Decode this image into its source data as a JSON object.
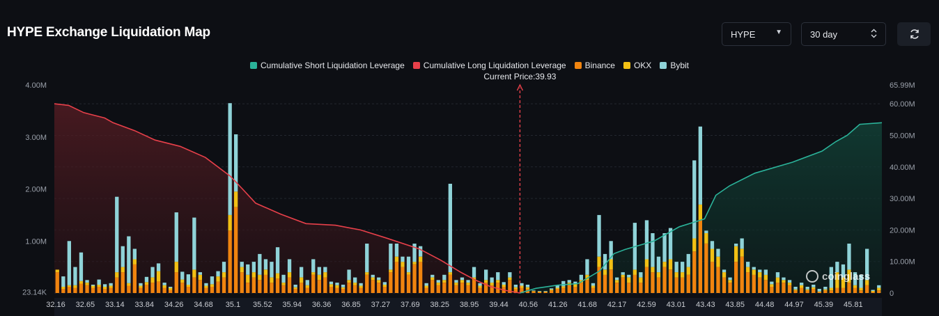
{
  "header": {
    "title": "HYPE Exchange Liquidation Map",
    "symbol_select": "HYPE",
    "period_select": "30 day"
  },
  "colors": {
    "short": "#2bb39a",
    "long": "#e8404a",
    "binance": "#f0840f",
    "okx": "#f2c014",
    "bybit": "#8fd3d8",
    "background": "#0d0f14"
  },
  "icons": {
    "symbol_select": "chevron-down-icon",
    "period_select": "up-down-chevron-icon",
    "refresh": "refresh-icon",
    "watermark": "coinglass-logo"
  },
  "chart_data": {
    "type": "bar",
    "current_price_label": "Current Price:39.93",
    "current_price": 39.93,
    "watermark": "coinglass",
    "legend": [
      {
        "name": "Cumulative Short Liquidation Leverage",
        "color": "#2bb39a"
      },
      {
        "name": "Cumulative Long Liquidation Leverage",
        "color": "#e8404a"
      },
      {
        "name": "Binance",
        "color": "#f0840f"
      },
      {
        "name": "OKX",
        "color": "#f2c014"
      },
      {
        "name": "Bybit",
        "color": "#8fd3d8"
      }
    ],
    "y_left_ticks": [
      "23.14K",
      "1.00M",
      "2.00M",
      "3.00M",
      "4.00M"
    ],
    "y_left_ticks_values": [
      23140,
      1000000,
      2000000,
      3000000,
      4000000
    ],
    "y_left_range": [
      0,
      4000000
    ],
    "y_right_ticks": [
      "0",
      "10.00M",
      "20.00M",
      "30.00M",
      "40.00M",
      "50.00M",
      "60.00M",
      "65.99M"
    ],
    "y_right_ticks_values": [
      0,
      10000000,
      20000000,
      30000000,
      40000000,
      50000000,
      60000000,
      65990000
    ],
    "y_right_range": [
      0,
      65990000
    ],
    "x_ticks": [
      "32.16",
      "32.65",
      "33.14",
      "33.84",
      "34.26",
      "34.68",
      "35.1",
      "35.52",
      "35.94",
      "36.36",
      "36.85",
      "37.27",
      "37.69",
      "38.25",
      "38.95",
      "39.44",
      "40.56",
      "41.26",
      "41.68",
      "42.17",
      "42.59",
      "43.01",
      "43.43",
      "43.85",
      "44.48",
      "44.97",
      "45.39",
      "45.81"
    ],
    "x_range": [
      32.16,
      45.97
    ],
    "bars_binance": [
      0.4,
      0.08,
      0.12,
      0.1,
      0.18,
      0.15,
      0.1,
      0.12,
      0.08,
      0.1,
      0.3,
      0.4,
      0.14,
      0.55,
      0.1,
      0.16,
      0.2,
      0.22,
      0.1,
      0.06,
      0.4,
      0.2,
      0.12,
      0.3,
      0.25,
      0.1,
      0.12,
      0.22,
      0.3,
      1.2,
      1.65,
      0.4,
      0.2,
      0.3,
      0.25,
      0.35,
      0.2,
      0.28,
      0.15,
      0.3,
      0.08,
      0.2,
      0.1,
      0.35,
      0.25,
      0.3,
      0.12,
      0.1,
      0.08,
      0.2,
      0.15,
      0.1,
      0.35,
      0.25,
      0.2,
      0.12,
      0.4,
      0.6,
      0.5,
      0.35,
      0.55,
      0.6,
      0.1,
      0.25,
      0.15,
      0.2,
      0.35,
      0.15,
      0.2,
      0.15,
      0.25,
      0.1,
      0.2,
      0.15,
      0.2,
      0.12,
      0.25,
      0.08,
      0.1,
      0.08,
      0.03,
      0.02,
      0.02,
      0.05,
      0.08,
      0.1,
      0.15,
      0.12,
      0.2,
      0.25,
      0.1,
      0.5,
      0.35,
      0.45,
      0.2,
      0.3,
      0.2,
      0.35,
      0.2,
      0.5,
      0.4,
      0.3,
      0.5,
      0.45,
      0.3,
      0.3,
      0.35,
      0.8,
      1.4,
      0.95,
      0.6,
      0.5,
      0.3,
      0.2,
      0.6,
      0.7,
      0.4,
      0.35,
      0.3,
      0.25,
      0.12,
      0.2,
      0.2,
      0.15,
      0.05,
      0.1,
      0.05,
      0.08,
      0.02,
      0.05,
      0.05,
      0.1,
      0.1,
      0.2,
      0.1,
      0.05,
      0.15,
      0.02,
      0.05
    ],
    "bars_okx": [
      0.05,
      0.04,
      0.03,
      0.05,
      0.05,
      0.05,
      0.04,
      0.04,
      0.04,
      0.04,
      0.1,
      0.1,
      0.05,
      0.1,
      0.04,
      0.05,
      0.1,
      0.2,
      0.05,
      0.04,
      0.2,
      0.06,
      0.04,
      0.15,
      0.1,
      0.04,
      0.05,
      0.1,
      0.1,
      0.3,
      0.3,
      0.1,
      0.15,
      0.1,
      0.1,
      0.1,
      0.1,
      0.1,
      0.05,
      0.1,
      0.03,
      0.1,
      0.05,
      0.05,
      0.1,
      0.1,
      0.05,
      0.05,
      0.03,
      0.05,
      0.05,
      0.04,
      0.05,
      0.05,
      0.05,
      0.04,
      0.05,
      0.1,
      0.1,
      0.05,
      0.05,
      0.1,
      0.04,
      0.05,
      0.05,
      0.05,
      0.05,
      0.05,
      0.05,
      0.05,
      0.05,
      0.04,
      0.05,
      0.05,
      0.05,
      0.04,
      0.05,
      0.03,
      0.04,
      0.03,
      0.01,
      0.01,
      0.01,
      0.02,
      0.02,
      0.03,
      0.05,
      0.05,
      0.05,
      0.1,
      0.04,
      0.2,
      0.1,
      0.2,
      0.05,
      0.05,
      0.1,
      0.1,
      0.1,
      0.15,
      0.1,
      0.1,
      0.1,
      0.2,
      0.1,
      0.1,
      0.15,
      0.25,
      0.3,
      0.2,
      0.25,
      0.2,
      0.1,
      0.05,
      0.3,
      0.15,
      0.1,
      0.1,
      0.1,
      0.1,
      0.05,
      0.1,
      0.05,
      0.05,
      0.02,
      0.05,
      0.02,
      0.03,
      0.01,
      0.02,
      0.05,
      0.3,
      0.2,
      0.25,
      0.05,
      0.05,
      0.1,
      0.02,
      0.05
    ],
    "bars_bybit": [
      0.0,
      0.2,
      0.85,
      0.35,
      0.55,
      0.05,
      0.02,
      0.1,
      0.05,
      0.05,
      1.45,
      0.4,
      0.9,
      0.2,
      0.05,
      0.1,
      0.2,
      0.15,
      0.05,
      0.02,
      0.95,
      0.15,
      0.2,
      1.0,
      0.05,
      0.05,
      0.15,
      0.1,
      0.2,
      2.15,
      1.1,
      0.1,
      0.2,
      0.2,
      0.4,
      0.2,
      0.3,
      0.5,
      0.15,
      0.25,
      0.05,
      0.2,
      0.1,
      0.25,
      0.15,
      0.1,
      0.05,
      0.05,
      0.05,
      0.2,
      0.1,
      0.05,
      0.55,
      0.05,
      0.05,
      0.05,
      0.5,
      0.25,
      0.1,
      0.3,
      0.35,
      0.2,
      0.05,
      0.05,
      0.05,
      0.1,
      1.7,
      0.05,
      0.05,
      0.05,
      0.2,
      0.05,
      0.2,
      0.1,
      0.15,
      0.05,
      0.1,
      0.05,
      0.05,
      0.05,
      0.01,
      0.01,
      0.01,
      0.02,
      0.05,
      0.1,
      0.05,
      0.05,
      0.1,
      0.3,
      0.05,
      0.8,
      0.3,
      0.35,
      0.05,
      0.05,
      0.05,
      0.9,
      0.1,
      0.75,
      0.65,
      0.3,
      0.55,
      0.6,
      0.2,
      0.2,
      0.25,
      1.5,
      1.5,
      0.05,
      0.15,
      0.15,
      0.05,
      0.05,
      0.05,
      0.2,
      0.1,
      0.05,
      0.05,
      0.1,
      0.05,
      0.1,
      0.05,
      0.05,
      0.05,
      0.05,
      0.05,
      0.05,
      0.05,
      0.05,
      0.4,
      0.2,
      0.25,
      0.5,
      0.25,
      0.25,
      0.6,
      0.02,
      0.05
    ],
    "cumulative_long_x": [
      32.16,
      32.4,
      32.65,
      33.0,
      33.14,
      33.5,
      33.84,
      34.26,
      34.68,
      35.1,
      35.3,
      35.52,
      35.94,
      36.36,
      36.85,
      37.27,
      37.69,
      38.25,
      38.6,
      38.95,
      39.2,
      39.44,
      39.7,
      39.93
    ],
    "cumulative_long_y": [
      60.0,
      59.5,
      57.2,
      55.5,
      54.0,
      51.5,
      48.5,
      46.5,
      43.0,
      37.0,
      33.0,
      28.5,
      25.0,
      22.0,
      21.5,
      20.0,
      17.5,
      14.0,
      10.5,
      6.5,
      4.0,
      2.0,
      0.8,
      0.0
    ],
    "cumulative_short_x": [
      39.93,
      40.2,
      40.56,
      40.9,
      41.26,
      41.5,
      41.68,
      41.9,
      42.17,
      42.59,
      43.01,
      43.2,
      43.43,
      43.85,
      44.48,
      44.97,
      45.2,
      45.39,
      45.6,
      45.97
    ],
    "cumulative_short_y": [
      0.0,
      1.5,
      2.5,
      3.0,
      7.0,
      12.5,
      13.8,
      15.0,
      16.5,
      21.0,
      23.5,
      31.0,
      34.0,
      38.0,
      41.5,
      45.0,
      48.0,
      50.0,
      53.5,
      54.0
    ]
  }
}
